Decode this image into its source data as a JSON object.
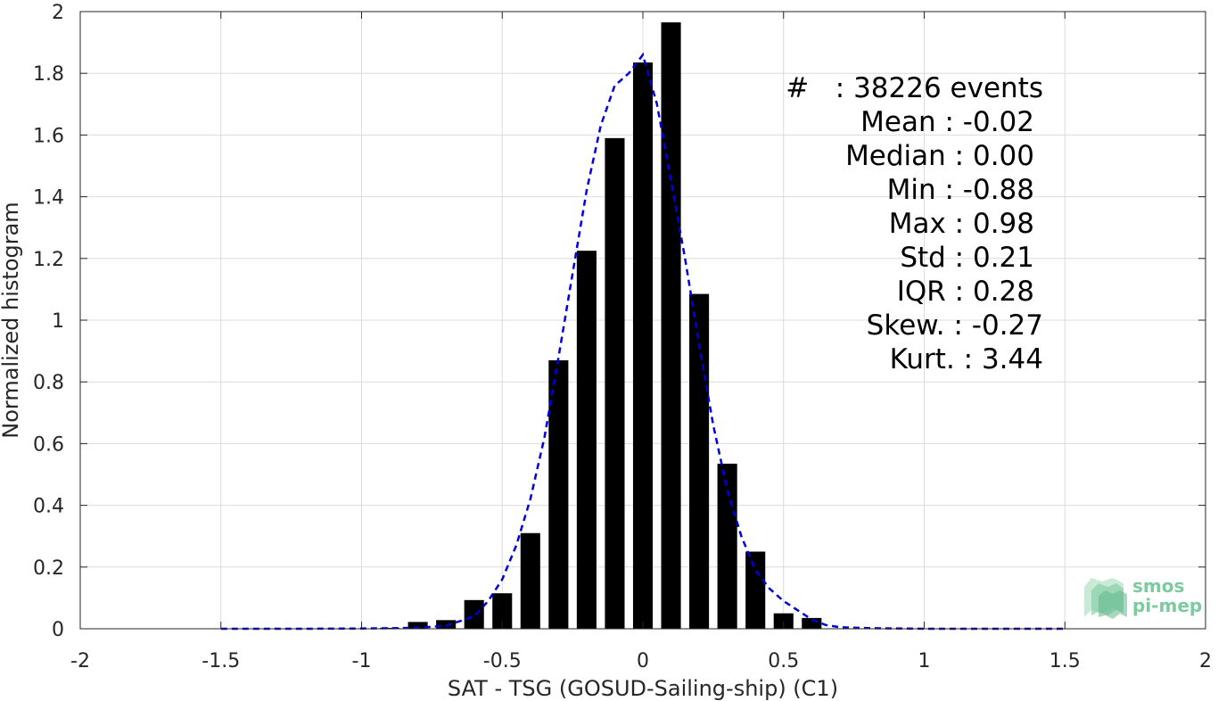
{
  "chart_data": {
    "type": "bar",
    "xlabel": "SAT - TSG (GOSUD-Sailing-ship) (C1)",
    "ylabel": "Normalized histogram",
    "xlim": [
      -2,
      2
    ],
    "ylim": [
      0,
      2
    ],
    "grid": true,
    "x_ticks": [
      "-2",
      "-1.5",
      "-1",
      "-0.5",
      "0",
      "0.5",
      "1",
      "1.5",
      "2"
    ],
    "y_ticks": [
      "0",
      "0.2",
      "0.4",
      "0.6",
      "0.8",
      "1",
      "1.2",
      "1.4",
      "1.6",
      "1.8",
      "2"
    ],
    "bar_width": 0.07,
    "bars": [
      {
        "x": -0.9,
        "y": 0.003
      },
      {
        "x": -0.8,
        "y": 0.022
      },
      {
        "x": -0.7,
        "y": 0.028
      },
      {
        "x": -0.6,
        "y": 0.093
      },
      {
        "x": -0.5,
        "y": 0.115
      },
      {
        "x": -0.4,
        "y": 0.31
      },
      {
        "x": -0.3,
        "y": 0.87
      },
      {
        "x": -0.2,
        "y": 1.225
      },
      {
        "x": -0.1,
        "y": 1.59
      },
      {
        "x": 0.0,
        "y": 1.835
      },
      {
        "x": 0.1,
        "y": 1.965
      },
      {
        "x": 0.2,
        "y": 1.085
      },
      {
        "x": 0.3,
        "y": 0.535
      },
      {
        "x": 0.4,
        "y": 0.25
      },
      {
        "x": 0.5,
        "y": 0.05
      },
      {
        "x": 0.6,
        "y": 0.035
      }
    ],
    "fit_curve": {
      "color": "#0000dd",
      "style": "dashed",
      "x": [
        -1.5,
        -1.2,
        -1.0,
        -0.8,
        -0.7,
        -0.6,
        -0.55,
        -0.5,
        -0.45,
        -0.4,
        -0.35,
        -0.3,
        -0.25,
        -0.2,
        -0.15,
        -0.1,
        -0.05,
        0.0,
        0.05,
        0.1,
        0.15,
        0.2,
        0.25,
        0.3,
        0.35,
        0.4,
        0.45,
        0.5,
        0.55,
        0.6,
        0.65,
        0.7,
        0.8,
        1.0,
        1.2,
        1.5
      ],
      "y": [
        0.0,
        0.0,
        0.001,
        0.003,
        0.01,
        0.04,
        0.09,
        0.16,
        0.27,
        0.42,
        0.62,
        0.88,
        1.15,
        1.42,
        1.63,
        1.76,
        1.8,
        1.86,
        1.7,
        1.45,
        1.2,
        0.92,
        0.66,
        0.45,
        0.3,
        0.19,
        0.13,
        0.09,
        0.06,
        0.03,
        0.012,
        0.005,
        0.002,
        0.0,
        0.0,
        0.0
      ]
    },
    "stats": [
      "#   : 38226 events",
      "Mean : -0.02",
      "Median : 0.00",
      "Min : -0.88",
      "Max : 0.98",
      "Std : 0.21",
      "IQR : 0.28",
      "Skew. : -0.27",
      "Kurt. : 3.44"
    ]
  },
  "logo": {
    "line1": "smos",
    "line2": "pi-mep",
    "color": "#7fc9a0"
  }
}
